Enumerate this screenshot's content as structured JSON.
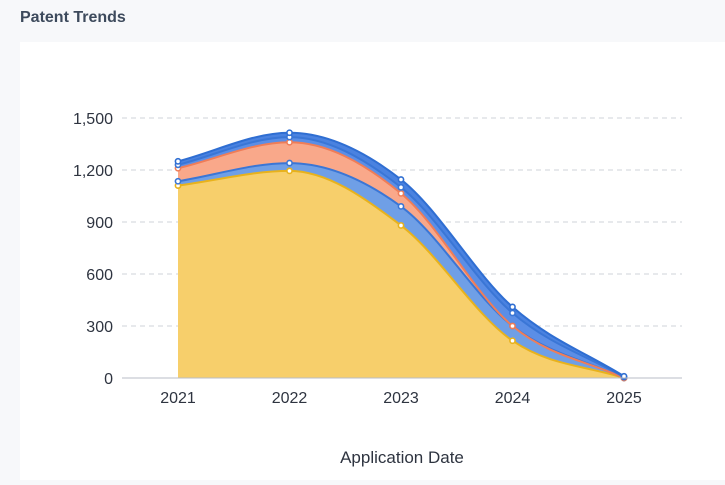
{
  "page_title": "Patent Trends",
  "chart_data": {
    "type": "area",
    "stacked": true,
    "categories": [
      "2021",
      "2022",
      "2023",
      "2024",
      "2025"
    ],
    "xlabel": "Application Date",
    "ylabel": "",
    "ylim": [
      0,
      1500
    ],
    "yticks": [
      0,
      300,
      600,
      900,
      1200,
      1500
    ],
    "grid": true,
    "series": [
      {
        "values": [
          1110,
          1195,
          880,
          215,
          0
        ],
        "color": "#f7cf6b",
        "line": "#e8b21c"
      },
      {
        "values": [
          25,
          45,
          110,
          85,
          0
        ],
        "color": "#6f9fe6",
        "line": "#3a76d6"
      },
      {
        "values": [
          75,
          120,
          75,
          0,
          0
        ],
        "color": "#f9a88a",
        "line": "#ef7d58"
      },
      {
        "values": [
          20,
          30,
          35,
          75,
          5
        ],
        "color": "#5b8ee6",
        "line": "#3a76d6"
      },
      {
        "values": [
          20,
          25,
          45,
          35,
          5
        ],
        "color": "#4a82e0",
        "line": "#2f6ed2"
      }
    ]
  }
}
